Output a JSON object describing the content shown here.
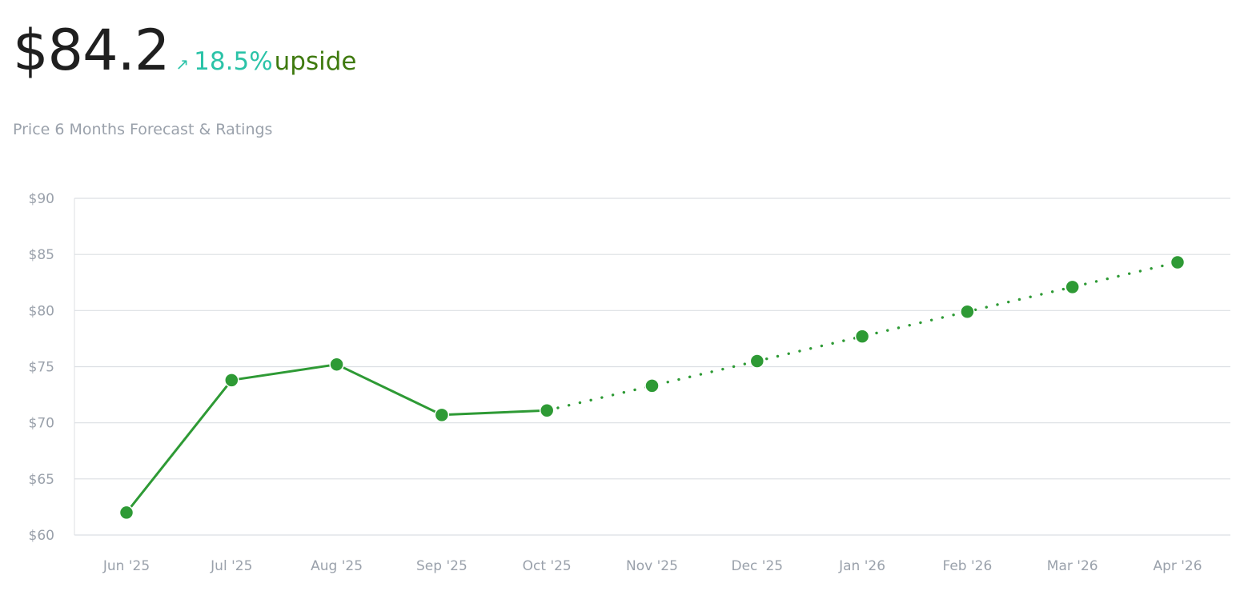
{
  "header": {
    "price": "$84.2",
    "change_arrow_icon": "arrow-up-right-icon",
    "change_percent": "18.5%",
    "change_label": "upside",
    "subtitle": "Price 6 Months Forecast & Ratings"
  },
  "colors": {
    "line": "#2e9a35",
    "grid": "#dcdfe3",
    "tick_text": "#9aa1ab",
    "change_up": "#2bc3a8",
    "upside_label": "#3f7a0f"
  },
  "chart_data": {
    "type": "line",
    "title": "",
    "xlabel": "",
    "ylabel": "",
    "categories": [
      "Jun '25",
      "Jul '25",
      "Aug '25",
      "Sep '25",
      "Oct '25",
      "Nov '25",
      "Dec '25",
      "Jan '26",
      "Feb '26",
      "Mar '26",
      "Apr '26"
    ],
    "y_ticks": [
      "$60",
      "$65",
      "$70",
      "$75",
      "$80",
      "$85",
      "$90"
    ],
    "ylim": [
      60,
      90
    ],
    "grid": true,
    "series": [
      {
        "style": "solid",
        "values": [
          62.0,
          73.8,
          75.2,
          70.7,
          71.1,
          null,
          null,
          null,
          null,
          null,
          null
        ]
      },
      {
        "style": "dotted",
        "values": [
          null,
          null,
          null,
          null,
          71.1,
          73.3,
          75.5,
          77.7,
          79.9,
          82.1,
          84.3
        ]
      }
    ]
  }
}
